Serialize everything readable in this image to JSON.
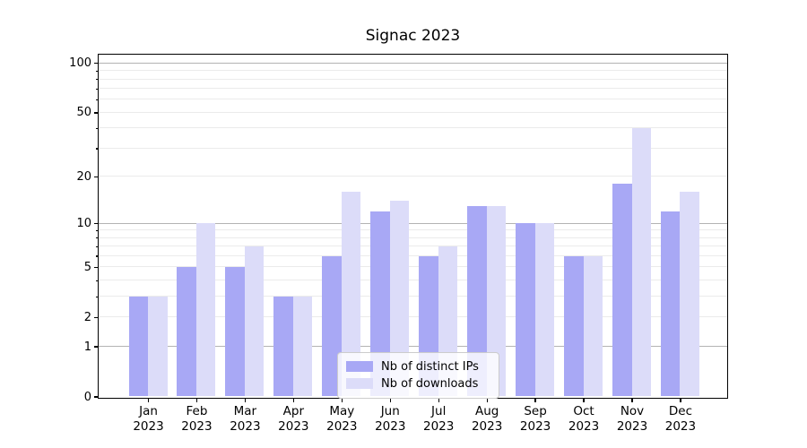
{
  "title": "Signac 2023",
  "colors": {
    "series_distinct_ips": "#a8a8f5",
    "series_downloads": "#dcdcf9",
    "grid_major": "#b3b3b3",
    "grid_minor": "#ebebeb",
    "spine": "#000000",
    "text": "#000000",
    "legend_border": "#cccccc",
    "legend_background": "rgba(255,255,255,0.8)"
  },
  "chart_data": {
    "type": "bar",
    "title": "Signac 2023",
    "xlabel": "",
    "ylabel": "",
    "scale": {
      "type": "log1p",
      "base": 10,
      "ymin": 0,
      "ymax": 113
    },
    "grid": true,
    "legend_position": "lower center",
    "categories": [
      "Jan 2023",
      "Feb 2023",
      "Mar 2023",
      "Apr 2023",
      "May 2023",
      "Jun 2023",
      "Jul 2023",
      "Aug 2023",
      "Sep 2023",
      "Oct 2023",
      "Nov 2023",
      "Dec 2023"
    ],
    "series": [
      {
        "name": "Nb of distinct IPs",
        "color": "#a8a8f5",
        "values": [
          3,
          5,
          5,
          3,
          6,
          12,
          6,
          13,
          10,
          6,
          18,
          12
        ]
      },
      {
        "name": "Nb of downloads",
        "color": "#dcdcf9",
        "values": [
          3,
          10,
          7,
          3,
          16,
          14,
          7,
          13,
          10,
          6,
          40,
          16
        ]
      }
    ],
    "ytick_labels": [
      0,
      1,
      2,
      5,
      10,
      20,
      50,
      100
    ],
    "major_gridlines": [
      1,
      10,
      100
    ],
    "minor_gridlines": [
      2,
      3,
      4,
      5,
      6,
      7,
      8,
      9,
      20,
      30,
      40,
      50,
      60,
      70,
      80,
      90
    ]
  }
}
